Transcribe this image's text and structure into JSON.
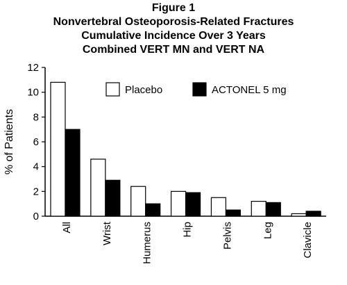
{
  "chart_data": {
    "type": "bar",
    "title": "Figure 1",
    "subtitle_lines": [
      "Nonvertebral Osteoporosis-Related Fractures",
      "Cumulative Incidence Over 3 Years",
      "Combined VERT MN and VERT NA"
    ],
    "xlabel": "",
    "ylabel": "% of Patients",
    "ylim": [
      0,
      12
    ],
    "yticks": [
      0,
      2,
      4,
      6,
      8,
      10,
      12
    ],
    "grid": false,
    "legend_position": "top-right",
    "categories": [
      "All",
      "Wrist",
      "Humerus",
      "Hip",
      "Pelvis",
      "Leg",
      "Clavicle"
    ],
    "series": [
      {
        "name": "Placebo",
        "fill": "#ffffff",
        "values": [
          10.8,
          4.6,
          2.4,
          2.0,
          1.5,
          1.2,
          0.2
        ]
      },
      {
        "name": "ACTONEL 5 mg",
        "fill": "#000000",
        "values": [
          7.0,
          2.9,
          1.0,
          1.9,
          0.5,
          1.1,
          0.4
        ]
      }
    ]
  }
}
